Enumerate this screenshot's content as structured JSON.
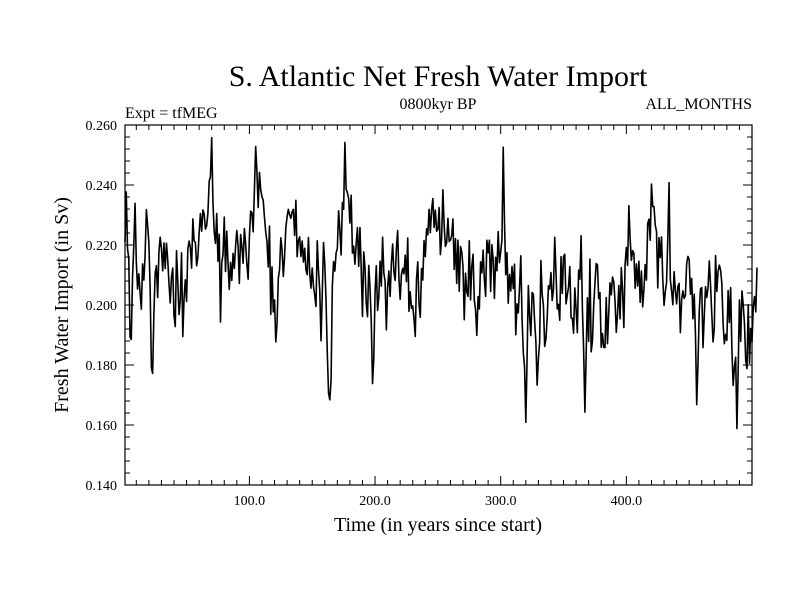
{
  "chart_data": {
    "type": "line",
    "title": "S. Atlantic Net Fresh Water Import",
    "subtitle_left": "Expt = tfMEG",
    "subtitle_center": "0800kyr BP",
    "subtitle_right": "ALL_MONTHS",
    "xlabel": "Time (in years since start)",
    "ylabel": "Fresh Water Import (in Sv)",
    "xlim": [
      1,
      500
    ],
    "ylim": [
      0.14,
      0.26
    ],
    "x_ticks": [
      {
        "value": 100,
        "label": "100.0"
      },
      {
        "value": 200,
        "label": "200.0"
      },
      {
        "value": 300,
        "label": "300.0"
      },
      {
        "value": 400,
        "label": "400.0"
      }
    ],
    "y_ticks": [
      {
        "value": 0.14,
        "label": "0.140"
      },
      {
        "value": 0.16,
        "label": "0.160"
      },
      {
        "value": 0.18,
        "label": "0.180"
      },
      {
        "value": 0.2,
        "label": "0.200"
      },
      {
        "value": 0.22,
        "label": "0.220"
      },
      {
        "value": 0.24,
        "label": "0.240"
      },
      {
        "value": 0.26,
        "label": "0.260"
      }
    ],
    "x_minor_step": 10,
    "y_minor_step": 0.004,
    "series": [
      {
        "name": "Fresh Water Import",
        "color": "#000000",
        "x_start": 1,
        "x_step": 1,
        "values": [
          0.2209,
          0.2377,
          0.2189,
          0.2155,
          0.1894,
          0.1885,
          0.2094,
          0.2196,
          0.2339,
          0.2144,
          0.2053,
          0.2104,
          0.2041,
          0.1986,
          0.2137,
          0.2083,
          0.2165,
          0.2318,
          0.2266,
          0.2207,
          0.2057,
          0.1791,
          0.1772,
          0.1971,
          0.2106,
          0.2131,
          0.2025,
          0.2176,
          0.2226,
          0.2189,
          0.2114,
          0.2207,
          0.2122,
          0.2206,
          0.2151,
          0.2072,
          0.2007,
          0.2093,
          0.2123,
          0.1964,
          0.1928,
          0.2181,
          0.2078,
          0.1968,
          0.2016,
          0.2174,
          0.1895,
          0.2022,
          0.2084,
          0.2012,
          0.2186,
          0.2213,
          0.2192,
          0.2123,
          0.2287,
          0.2213,
          0.2209,
          0.2131,
          0.2159,
          0.2239,
          0.2305,
          0.2246,
          0.2317,
          0.2303,
          0.2253,
          0.2264,
          0.2307,
          0.2413,
          0.2428,
          0.2558,
          0.2339,
          0.2245,
          0.2205,
          0.2305,
          0.2146,
          0.2236,
          0.1943,
          0.2141,
          0.2168,
          0.2293,
          0.2112,
          0.2246,
          0.2137,
          0.2052,
          0.2142,
          0.2082,
          0.2172,
          0.2122,
          0.2195,
          0.2248,
          0.2197,
          0.2072,
          0.2235,
          0.2195,
          0.2139,
          0.2255,
          0.2203,
          0.2135,
          0.2086,
          0.2227,
          0.2313,
          0.2308,
          0.2244,
          0.2385,
          0.2528,
          0.2443,
          0.2325,
          0.2442,
          0.2385,
          0.2361,
          0.2349,
          0.2292,
          0.2243,
          0.2211,
          0.2127,
          0.2263,
          0.1969,
          0.2127,
          0.1977,
          0.2017,
          0.1877,
          0.1937,
          0.2088,
          0.2118,
          0.2224,
          0.2184,
          0.2095,
          0.2162,
          0.2258,
          0.2294,
          0.2319,
          0.2301,
          0.2289,
          0.2311,
          0.2319,
          0.2232,
          0.2349,
          0.2161,
          0.2215,
          0.2227,
          0.2162,
          0.2213,
          0.2143,
          0.2189,
          0.2117,
          0.2101,
          0.2225,
          0.2107,
          0.2056,
          0.2123,
          0.2062,
          0.2032,
          0.1995,
          0.2214,
          0.2114,
          0.2049,
          0.1881,
          0.2038,
          0.2208,
          0.2136,
          0.2015,
          0.1839,
          0.1706,
          0.1684,
          0.1748,
          0.2062,
          0.2145,
          0.2113,
          0.2173,
          0.2189,
          0.2314,
          0.2251,
          0.2167,
          0.2342,
          0.2319,
          0.2542,
          0.2386,
          0.2374,
          0.2355,
          0.2273,
          0.2366,
          0.2173,
          0.2196,
          0.2136,
          0.2205,
          0.2258,
          0.2129,
          0.2258,
          0.2119,
          0.1962,
          0.2177,
          0.2124,
          0.2005,
          0.1961,
          0.2132,
          0.2057,
          0.1943,
          0.1738,
          0.1823,
          0.2041,
          0.2131,
          0.1982,
          0.2026,
          0.2146,
          0.2063,
          0.2226,
          0.2107,
          0.2079,
          0.1917,
          0.2057,
          0.2113,
          0.2029,
          0.2137,
          0.2203,
          0.2111,
          0.2082,
          0.2188,
          0.2248,
          0.2089,
          0.2019,
          0.2102,
          0.2122,
          0.2104,
          0.2166,
          0.2078,
          0.2223,
          0.1979,
          0.2044,
          0.1989,
          0.1997,
          0.1953,
          0.1895,
          0.2087,
          0.2144,
          0.2003,
          0.1959,
          0.2122,
          0.2083,
          0.2215,
          0.2161,
          0.2254,
          0.2234,
          0.2319,
          0.2241,
          0.2316,
          0.2355,
          0.2259,
          0.2316,
          0.2246,
          0.2252,
          0.2325,
          0.2168,
          0.2224,
          0.2384,
          0.2266,
          0.2195,
          0.2208,
          0.2289,
          0.2212,
          0.2216,
          0.2231,
          0.2287,
          0.2119,
          0.2221,
          0.2072,
          0.2216,
          0.2046,
          0.2195,
          0.2177,
          0.2127,
          0.1951,
          0.2106,
          0.2044,
          0.2029,
          0.2214,
          0.2017,
          0.2129,
          0.2169,
          0.2015,
          0.1984,
          0.1899,
          0.2028,
          0.1987,
          0.2144,
          0.2107,
          0.2183,
          0.2087,
          0.2029,
          0.2216,
          0.2174,
          0.2216,
          0.2045,
          0.2201,
          0.2152,
          0.2022,
          0.2159,
          0.2114,
          0.2245,
          0.2141,
          0.2177,
          0.2217,
          0.2526,
          0.2279,
          0.2101,
          0.2175,
          0.2006,
          0.2102,
          0.2047,
          0.2128,
          0.2055,
          0.2136,
          0.1901,
          0.2004,
          0.1974,
          0.2059,
          0.2164,
          0.1954,
          0.1842,
          0.1792,
          0.1609,
          0.1822,
          0.2065,
          0.1963,
          0.1898,
          0.2042,
          0.2036,
          0.1945,
          0.1878,
          0.1733,
          0.1821,
          0.1876,
          0.2148,
          0.2037,
          0.1998,
          0.1862,
          0.1887,
          0.1957,
          0.2064,
          0.2053,
          0.2108,
          0.2015,
          0.2053,
          0.2226,
          0.2109,
          0.1987,
          0.2002,
          0.1949,
          0.2161,
          0.2039,
          0.2162,
          0.2169,
          0.2004,
          0.2033,
          0.2061,
          0.2128,
          0.1957,
          0.1956,
          0.1906,
          0.2057,
          0.1986,
          0.1908,
          0.2116,
          0.2086,
          0.2231,
          0.1991,
          0.1851,
          0.1643,
          0.1832,
          0.2024,
          0.1879,
          0.2153,
          0.1844,
          0.1879,
          0.1996,
          0.2072,
          0.2138,
          0.2134,
          0.2022,
          0.2041,
          0.1859,
          0.1905,
          0.1859,
          0.1858,
          0.2025,
          0.1871,
          0.1975,
          0.2074,
          0.2034,
          0.2093,
          0.2077,
          0.2012,
          0.1909,
          0.1971,
          0.2065,
          0.1954,
          0.2125,
          0.2046,
          0.1925,
          0.2136,
          0.2192,
          0.2132,
          0.2331,
          0.2221,
          0.2149,
          0.2181,
          0.2173,
          0.2056,
          0.2137,
          0.2063,
          0.2146,
          0.2009,
          0.2113,
          0.1994,
          0.2051,
          0.2135,
          0.2083,
          0.2272,
          0.2286,
          0.2216,
          0.2403,
          0.2328,
          0.2328,
          0.2266,
          0.2245,
          0.2057,
          0.2225,
          0.2158,
          0.2227,
          0.2085,
          0.1999,
          0.2044,
          0.2076,
          0.2221,
          0.2408,
          0.2085,
          0.2047,
          0.2001,
          0.2111,
          0.2048,
          0.2004,
          0.2062,
          0.2072,
          0.1908,
          0.2018,
          0.2047,
          0.2022,
          0.2032,
          0.2137,
          0.2162,
          0.2152,
          0.2036,
          0.2088,
          0.1954,
          0.2036,
          0.1903,
          0.1668,
          0.1803,
          0.1978,
          0.2054,
          0.2058,
          0.1858,
          0.1962,
          0.2061,
          0.2025,
          0.2057,
          0.2147,
          0.2066,
          0.1969,
          0.1877,
          0.1922,
          0.2165,
          0.2045,
          0.2112,
          0.2133,
          0.2116,
          0.2072,
          0.1937,
          0.1871,
          0.1902,
          0.1882,
          0.2048,
          0.1942,
          0.2058,
          0.1851,
          0.1732,
          0.1793,
          0.1826,
          0.1588,
          0.1785,
          0.2017,
          0.1879,
          0.2047,
          0.2001,
          0.1939,
          0.1815,
          0.1788,
          0.2001,
          0.1806,
          0.1922,
          0.1876,
          0.1994,
          0.2028,
          0.1977,
          0.2125
        ]
      }
    ]
  }
}
